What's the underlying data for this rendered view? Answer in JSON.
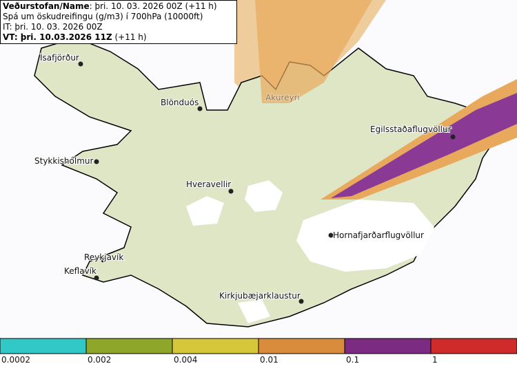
{
  "header": {
    "line1_bold": "Veðurstofan/Name",
    "line1_rest": ": þri. 10. 03. 2026 00Z (+11 h)",
    "line2": "Spá um öskudreifingu (g/m3) í 700hPa (10000ft)",
    "line3": "IT: þri. 10. 03. 2026 00Z",
    "line4_bold": "VT: þri. 10.03.2026 11Z",
    "line4_rest": "(+11 h)"
  },
  "places": [
    {
      "label": "Ísafjörður"
    },
    {
      "label": "Blönduós"
    },
    {
      "label": "Akureyri"
    },
    {
      "label": "Egilsstaðaflugvöllur"
    },
    {
      "label": "Stykkishólmur"
    },
    {
      "label": "Hveravellir"
    },
    {
      "label": "Reykjavík"
    },
    {
      "label": "Keflavík"
    },
    {
      "label": "Hornafjarðarflugvöllur"
    },
    {
      "label": "Kirkjubæjarklaustur"
    }
  ],
  "legend": {
    "ticks": [
      0.0002,
      0.002,
      0.004,
      0.01,
      0.1,
      1
    ],
    "colors": [
      "#33c8c8",
      "#8ea62a",
      "#d6c63a",
      "#d98c3c",
      "#7b2c82",
      "#cf2b2b"
    ]
  }
}
